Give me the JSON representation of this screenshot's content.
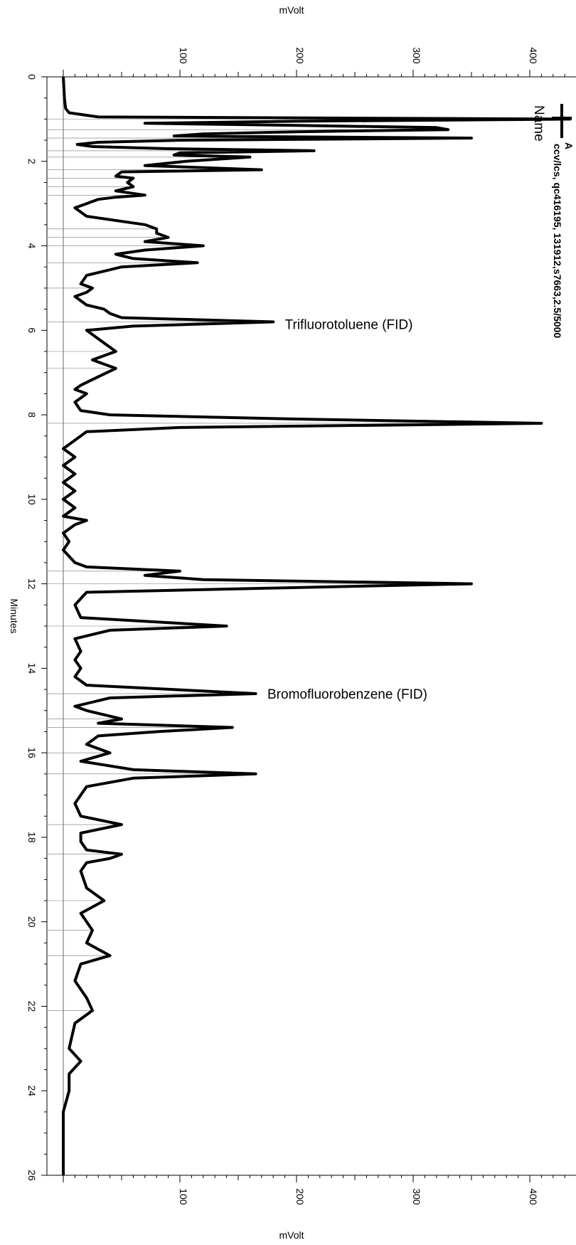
{
  "chart_data": {
    "type": "line",
    "x_axis_label": "Minutes",
    "y_axis_label": "mVolt",
    "xlim": [
      0,
      26
    ],
    "ylim": [
      -10,
      450
    ],
    "x_ticks": [
      0,
      2,
      4,
      6,
      8,
      10,
      12,
      14,
      16,
      18,
      20,
      22,
      24,
      26
    ],
    "y_ticks": [
      100,
      200,
      300,
      400
    ],
    "orientation": "rotated",
    "legend": {
      "marker": "A",
      "text": "ccv/lcs, qc416195, 131912,s7663,2.5/5000",
      "header": "Name"
    },
    "annotations": [
      {
        "text": "Trifluorotoluene (FID)",
        "x": 5.85,
        "y": 190
      },
      {
        "text": "Bromofluorobenzene (FID)",
        "x": 14.6,
        "y": 175
      }
    ],
    "series": [
      {
        "points": [
          [
            0.0,
            0
          ],
          [
            0.5,
            1
          ],
          [
            0.75,
            2
          ],
          [
            0.85,
            5
          ],
          [
            0.95,
            30
          ],
          [
            1.0,
            480
          ],
          [
            1.05,
            200
          ],
          [
            1.1,
            70
          ],
          [
            1.15,
            200
          ],
          [
            1.2,
            320
          ],
          [
            1.25,
            330
          ],
          [
            1.3,
            200
          ],
          [
            1.35,
            120
          ],
          [
            1.4,
            95
          ],
          [
            1.45,
            350
          ],
          [
            1.5,
            100
          ],
          [
            1.55,
            30
          ],
          [
            1.6,
            12
          ],
          [
            1.65,
            25
          ],
          [
            1.7,
            90
          ],
          [
            1.75,
            215
          ],
          [
            1.8,
            100
          ],
          [
            1.85,
            95
          ],
          [
            1.9,
            160
          ],
          [
            2.0,
            105
          ],
          [
            2.1,
            70
          ],
          [
            2.2,
            170
          ],
          [
            2.25,
            50
          ],
          [
            2.35,
            45
          ],
          [
            2.4,
            60
          ],
          [
            2.5,
            55
          ],
          [
            2.6,
            60
          ],
          [
            2.7,
            45
          ],
          [
            2.8,
            70
          ],
          [
            2.85,
            45
          ],
          [
            2.9,
            30
          ],
          [
            3.0,
            20
          ],
          [
            3.1,
            10
          ],
          [
            3.3,
            20
          ],
          [
            3.5,
            70
          ],
          [
            3.6,
            80
          ],
          [
            3.7,
            80
          ],
          [
            3.8,
            90
          ],
          [
            3.9,
            70
          ],
          [
            4.0,
            120
          ],
          [
            4.1,
            70
          ],
          [
            4.2,
            45
          ],
          [
            4.3,
            60
          ],
          [
            4.4,
            115
          ],
          [
            4.5,
            50
          ],
          [
            4.7,
            20
          ],
          [
            4.9,
            15
          ],
          [
            5.0,
            25
          ],
          [
            5.1,
            20
          ],
          [
            5.2,
            10
          ],
          [
            5.3,
            15
          ],
          [
            5.4,
            20
          ],
          [
            5.5,
            35
          ],
          [
            5.6,
            40
          ],
          [
            5.7,
            50
          ],
          [
            5.8,
            180
          ],
          [
            5.9,
            60
          ],
          [
            6.0,
            20
          ],
          [
            6.2,
            30
          ],
          [
            6.5,
            45
          ],
          [
            6.7,
            25
          ],
          [
            6.9,
            45
          ],
          [
            7.1,
            30
          ],
          [
            7.3,
            15
          ],
          [
            7.4,
            10
          ],
          [
            7.5,
            20
          ],
          [
            7.7,
            10
          ],
          [
            7.9,
            15
          ],
          [
            8.0,
            40
          ],
          [
            8.1,
            200
          ],
          [
            8.2,
            410
          ],
          [
            8.3,
            100
          ],
          [
            8.4,
            20
          ],
          [
            8.6,
            10
          ],
          [
            8.8,
            0
          ],
          [
            9.0,
            10
          ],
          [
            9.2,
            0
          ],
          [
            9.4,
            10
          ],
          [
            9.6,
            0
          ],
          [
            9.8,
            10
          ],
          [
            10.0,
            0
          ],
          [
            10.2,
            10
          ],
          [
            10.4,
            0
          ],
          [
            10.5,
            20
          ],
          [
            10.6,
            10
          ],
          [
            10.8,
            0
          ],
          [
            11.0,
            5
          ],
          [
            11.2,
            0
          ],
          [
            11.5,
            10
          ],
          [
            11.6,
            20
          ],
          [
            11.7,
            100
          ],
          [
            11.8,
            70
          ],
          [
            11.9,
            120
          ],
          [
            12.0,
            350
          ],
          [
            12.1,
            180
          ],
          [
            12.2,
            20
          ],
          [
            12.5,
            10
          ],
          [
            12.8,
            15
          ],
          [
            13.0,
            140
          ],
          [
            13.1,
            40
          ],
          [
            13.3,
            10
          ],
          [
            13.6,
            15
          ],
          [
            13.8,
            10
          ],
          [
            14.0,
            15
          ],
          [
            14.2,
            10
          ],
          [
            14.4,
            20
          ],
          [
            14.6,
            165
          ],
          [
            14.7,
            40
          ],
          [
            14.9,
            10
          ],
          [
            15.0,
            20
          ],
          [
            15.2,
            50
          ],
          [
            15.3,
            30
          ],
          [
            15.4,
            145
          ],
          [
            15.5,
            80
          ],
          [
            15.6,
            30
          ],
          [
            15.8,
            20
          ],
          [
            16.0,
            40
          ],
          [
            16.2,
            15
          ],
          [
            16.4,
            60
          ],
          [
            16.5,
            165
          ],
          [
            16.6,
            60
          ],
          [
            16.8,
            20
          ],
          [
            17.0,
            15
          ],
          [
            17.2,
            10
          ],
          [
            17.5,
            15
          ],
          [
            17.7,
            50
          ],
          [
            17.9,
            15
          ],
          [
            18.1,
            15
          ],
          [
            18.3,
            20
          ],
          [
            18.4,
            50
          ],
          [
            18.5,
            40
          ],
          [
            18.6,
            20
          ],
          [
            18.8,
            15
          ],
          [
            19.2,
            20
          ],
          [
            19.5,
            35
          ],
          [
            19.8,
            15
          ],
          [
            20.2,
            25
          ],
          [
            20.5,
            20
          ],
          [
            20.8,
            40
          ],
          [
            21.0,
            15
          ],
          [
            21.4,
            10
          ],
          [
            21.8,
            20
          ],
          [
            22.1,
            25
          ],
          [
            22.4,
            10
          ],
          [
            23.0,
            5
          ],
          [
            23.3,
            15
          ],
          [
            23.6,
            5
          ],
          [
            24.0,
            5
          ],
          [
            24.5,
            0
          ],
          [
            25.0,
            0
          ],
          [
            25.5,
            0
          ],
          [
            26.0,
            0
          ]
        ]
      }
    ]
  }
}
